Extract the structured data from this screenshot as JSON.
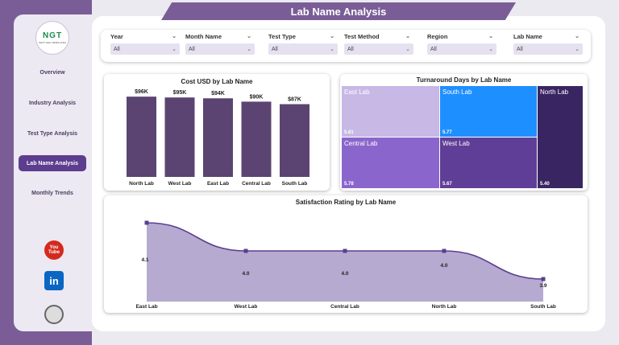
{
  "app": {
    "title": "Lab Name Analysis",
    "logo_text": "NGT",
    "logo_sub": "NEXT GEN TEMPLATES"
  },
  "sidebar": {
    "items": [
      {
        "label": "Overview",
        "active": false
      },
      {
        "label": "Industry Analysis",
        "active": false
      },
      {
        "label": "Test Type Analysis",
        "active": false
      },
      {
        "label": "Lab Name Analysis",
        "active": true
      },
      {
        "label": "Monthly Trends",
        "active": false
      }
    ],
    "social": {
      "youtube_top": "You",
      "youtube_bottom": "Tube",
      "linkedin": "in"
    }
  },
  "filters": [
    {
      "label": "Year",
      "value": "All"
    },
    {
      "label": "Month Name",
      "value": "All"
    },
    {
      "label": "Test Type",
      "value": "All"
    },
    {
      "label": "Test Method",
      "value": "All"
    },
    {
      "label": "Region",
      "value": "All"
    },
    {
      "label": "Lab Name",
      "value": "All"
    }
  ],
  "colors": {
    "accent": "#7a5d96",
    "bar": "#5b4472",
    "active_nav": "#5c3d8e",
    "line": "#5a3f8e",
    "area": "#b6aad1"
  },
  "chart_data": [
    {
      "type": "bar",
      "title": "Cost USD by Lab Name",
      "categories": [
        "North Lab",
        "West Lab",
        "East Lab",
        "Central Lab",
        "South Lab"
      ],
      "values": [
        96,
        95,
        94,
        90,
        87
      ],
      "data_labels": [
        "$96K",
        "$95K",
        "$94K",
        "$90K",
        "$87K"
      ],
      "ylim": [
        0,
        100
      ]
    },
    {
      "type": "treemap",
      "title": "Turnaround Days by Lab Name",
      "cells": [
        {
          "label": "East Lab",
          "value": "5.81",
          "color": "#c7b8e6"
        },
        {
          "label": "South Lab",
          "value": "5.77",
          "color": "#1e8fff"
        },
        {
          "label": "North Lab",
          "value": "5.40",
          "color": "#3a2563"
        },
        {
          "label": "Central Lab",
          "value": "5.78",
          "color": "#8a66cc"
        },
        {
          "label": "West Lab",
          "value": "5.67",
          "color": "#5f3e97"
        }
      ]
    },
    {
      "type": "area",
      "title": "Satisfaction Rating by Lab Name",
      "categories": [
        "East Lab",
        "West Lab",
        "Central Lab",
        "North Lab",
        "South Lab"
      ],
      "values": [
        4.1,
        4.0,
        4.0,
        4.0,
        3.9
      ],
      "data_labels": [
        "4.1",
        "4.0",
        "4.0",
        "4.0",
        "3.9"
      ],
      "ylim": [
        3.82,
        4.14
      ]
    }
  ]
}
